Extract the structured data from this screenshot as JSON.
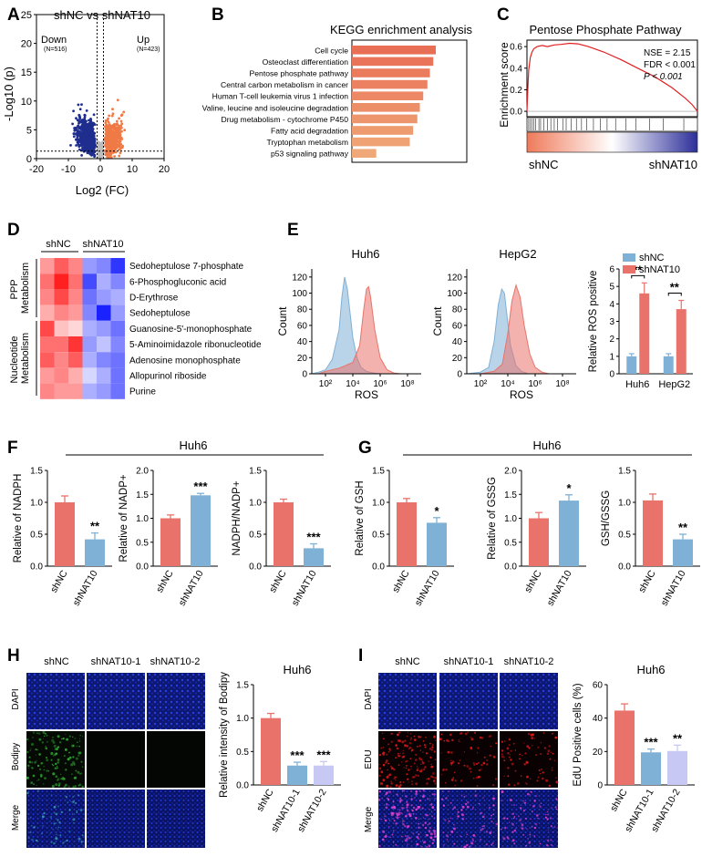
{
  "panel_labels": [
    "A",
    "B",
    "C",
    "D",
    "E",
    "F",
    "G",
    "H",
    "I"
  ],
  "colors": {
    "red": "#e9736b",
    "blue": "#7fb0d6",
    "lav": "#c8c8f4",
    "up": "#ef7a46",
    "down": "#1f2e8e",
    "grey": "#bdbdbd",
    "hm_red": "#e8201e",
    "hm_blue": "#1a21d6"
  },
  "chart_data": [
    {
      "panel": "A",
      "type": "scatter",
      "title": "shNC vs shNAT10",
      "xlabel": "Log2 (FC)",
      "ylabel": "-Log10 (p)",
      "xlim": [
        -20,
        20
      ],
      "ylim": [
        0,
        25
      ],
      "xticks": [
        "-20",
        "-10",
        "0",
        "10",
        "20"
      ],
      "yticks": [
        "0",
        "5",
        "10",
        "15",
        "20",
        "25"
      ],
      "series": [
        {
          "name": "Down",
          "count_label": "(N=516)",
          "color": "#1f2e8e"
        },
        {
          "name": "Up",
          "count_label": "(N=423)",
          "color": "#ef7a46"
        }
      ],
      "thresholds": {
        "fc_log2": [
          -1,
          1
        ],
        "neg_log10_p": 1.3
      }
    },
    {
      "panel": "B",
      "type": "bar",
      "title": "KEGG enrichment analysis",
      "categories": [
        "Cell cycle",
        "Osteoclast differentiation",
        "Pentose phosphate pathway",
        "Central carbon metabolism in cancer",
        "Human T-cell leukemia virus 1 infection",
        "Valine, leucine and isoleucine degradation",
        "Drug metabolism - cytochrome P450",
        "Fatty acid degradation",
        "Tryptophan metabolism",
        "p53 signaling pathway"
      ],
      "values": [
        10,
        9.7,
        9.3,
        9.0,
        8.5,
        8.1,
        7.8,
        7.3,
        6.9,
        2.9
      ]
    },
    {
      "panel": "C",
      "type": "line",
      "title": "Pentose Phosphate Pathway",
      "ylabel": "Enrichment score",
      "yticks": [
        "0.0",
        "0.2",
        "0.4",
        "0.6"
      ],
      "ylim": [
        -0.05,
        0.66
      ],
      "annotations": [
        "NSE = 2.15",
        "FDR < 0.001",
        "P < 0.001"
      ],
      "gradient_labels": [
        "shNC",
        "shNAT10"
      ],
      "running_es": [
        [
          0,
          0
        ],
        [
          0.5,
          0.2
        ],
        [
          1,
          0.38
        ],
        [
          2,
          0.5
        ],
        [
          3,
          0.55
        ],
        [
          4,
          0.58
        ],
        [
          6,
          0.6
        ],
        [
          9,
          0.61
        ],
        [
          12,
          0.6
        ],
        [
          16,
          0.615
        ],
        [
          20,
          0.62
        ],
        [
          25,
          0.63
        ],
        [
          30,
          0.625
        ],
        [
          36,
          0.6
        ],
        [
          45,
          0.55
        ],
        [
          55,
          0.48
        ],
        [
          65,
          0.4
        ],
        [
          75,
          0.32
        ],
        [
          85,
          0.22
        ],
        [
          93,
          0.12
        ],
        [
          97,
          0.06
        ],
        [
          100,
          0.0
        ]
      ],
      "hit_positions": [
        1,
        2,
        3,
        4,
        5,
        7,
        8,
        10,
        12,
        14,
        16,
        18,
        21,
        23,
        26,
        29,
        32,
        35,
        39,
        43,
        47,
        52,
        58,
        64,
        72,
        80,
        92
      ]
    },
    {
      "panel": "D",
      "type": "heatmap",
      "groups": [
        "shNC",
        "shNAT10"
      ],
      "row_groups": [
        {
          "name": "PPP Metabolism",
          "rows": 4
        },
        {
          "name": "Nucleotide Metabolism",
          "rows": 5
        }
      ],
      "rows": [
        "Sedoheptulose 7-phosphate",
        "6-Phosphogluconic acid",
        "D-Erythrose",
        "Sedoheptulose",
        "Guanosine-5'-monophosphate",
        "5-Aminoimidazole ribonucleotide",
        "Adenosine monophosphate",
        "Allopurinol riboside",
        "Purine"
      ],
      "values": [
        [
          0.4,
          0.7,
          0.5,
          -0.4,
          -0.5,
          -0.9
        ],
        [
          0.6,
          1.0,
          0.6,
          -0.8,
          -0.3,
          -0.5
        ],
        [
          0.5,
          0.8,
          0.5,
          -0.6,
          -0.4,
          -0.3
        ],
        [
          0.3,
          0.5,
          0.4,
          -0.5,
          -1.0,
          -0.4
        ],
        [
          0.8,
          0.2,
          0.1,
          -0.3,
          -0.4,
          -0.6
        ],
        [
          0.6,
          0.6,
          0.9,
          -0.4,
          -0.2,
          -0.5
        ],
        [
          0.7,
          0.5,
          0.7,
          -0.3,
          -0.5,
          -0.6
        ],
        [
          0.4,
          0.5,
          0.3,
          -0.1,
          -0.3,
          -0.6
        ],
        [
          0.5,
          0.4,
          0.4,
          -0.3,
          -0.4,
          -0.6
        ]
      ]
    },
    {
      "panel": "E1",
      "type": "area",
      "title": "Huh6",
      "xlabel": "ROS",
      "ylabel": "Count",
      "yticks": [
        "0",
        "20",
        "40",
        "60",
        "80",
        "100",
        "120"
      ],
      "ylim": [
        0,
        130
      ],
      "xticks": [
        "10²",
        "10⁴",
        "10⁶",
        "10⁸"
      ],
      "xlim_log10": [
        1,
        9
      ],
      "series": [
        {
          "name": "shNC",
          "color": "#7fb0d6",
          "points": [
            [
              1,
              0
            ],
            [
              1.5,
              2
            ],
            [
              2,
              5
            ],
            [
              2.5,
              18
            ],
            [
              3,
              55
            ],
            [
              3.2,
              95
            ],
            [
              3.4,
              120
            ],
            [
              3.6,
              105
            ],
            [
              3.8,
              75
            ],
            [
              4,
              45
            ],
            [
              4.3,
              20
            ],
            [
              4.6,
              8
            ],
            [
              5,
              3
            ],
            [
              5.5,
              1
            ],
            [
              6,
              0
            ]
          ]
        },
        {
          "name": "shNAT10",
          "color": "#e9736b",
          "points": [
            [
              1.5,
              0
            ],
            [
              2,
              3
            ],
            [
              3,
              7
            ],
            [
              4,
              14
            ],
            [
              4.5,
              35
            ],
            [
              4.8,
              80
            ],
            [
              5,
              105
            ],
            [
              5.15,
              108
            ],
            [
              5.3,
              95
            ],
            [
              5.6,
              55
            ],
            [
              6,
              20
            ],
            [
              6.5,
              5
            ],
            [
              7,
              1
            ],
            [
              7.5,
              0
            ]
          ]
        }
      ]
    },
    {
      "panel": "E2",
      "type": "area",
      "title": "HepG2",
      "xlabel": "ROS",
      "ylabel": "Count",
      "yticks": [
        "0",
        "20",
        "40",
        "60",
        "80",
        "100",
        "120"
      ],
      "ylim": [
        0,
        130
      ],
      "xticks": [
        "10²",
        "10⁴",
        "10⁶",
        "10⁸"
      ],
      "xlim_log10": [
        1,
        9
      ],
      "series": [
        {
          "name": "shNC",
          "color": "#7fb0d6",
          "points": [
            [
              1,
              0
            ],
            [
              2,
              2
            ],
            [
              2.6,
              8
            ],
            [
              3,
              40
            ],
            [
              3.3,
              85
            ],
            [
              3.55,
              105
            ],
            [
              3.75,
              100
            ],
            [
              3.95,
              70
            ],
            [
              4.2,
              35
            ],
            [
              4.6,
              10
            ],
            [
              5,
              3
            ],
            [
              5.5,
              0
            ]
          ]
        },
        {
          "name": "shNAT10",
          "color": "#e9736b",
          "points": [
            [
              2,
              0
            ],
            [
              3,
              3
            ],
            [
              3.6,
              12
            ],
            [
              4,
              50
            ],
            [
              4.3,
              90
            ],
            [
              4.6,
              110
            ],
            [
              4.9,
              95
            ],
            [
              5.2,
              60
            ],
            [
              5.6,
              25
            ],
            [
              6,
              8
            ],
            [
              6.5,
              2
            ],
            [
              7,
              0
            ]
          ]
        }
      ]
    },
    {
      "panel": "E3",
      "type": "bar",
      "ylabel": "Relative ROS positive",
      "ylim": [
        0,
        6
      ],
      "yticks": [
        "0",
        "1",
        "2",
        "3",
        "4",
        "5",
        "6"
      ],
      "categories": [
        "Huh6",
        "HepG2"
      ],
      "series": [
        {
          "name": "shNC",
          "color": "#7fb0d6",
          "values": [
            1.0,
            1.0
          ],
          "errors": [
            0.15,
            0.15
          ]
        },
        {
          "name": "shNAT10",
          "color": "#e9736b",
          "values": [
            4.6,
            3.7
          ],
          "errors": [
            0.6,
            0.5
          ]
        }
      ],
      "significance": [
        "**",
        "**"
      ]
    },
    {
      "panel": "F1",
      "type": "bar",
      "group_title": "Huh6",
      "ylabel": "Relative of NADPH",
      "ylim": [
        0,
        1.5
      ],
      "yticks": [
        "0.0",
        "0.5",
        "1.0",
        "1.5"
      ],
      "categories": [
        "shNC",
        "shNAT10"
      ],
      "values": [
        1.0,
        0.42
      ],
      "errors": [
        0.1,
        0.1
      ],
      "significance": "**"
    },
    {
      "panel": "F2",
      "type": "bar",
      "ylabel": "Relative of NADP+",
      "ylim": [
        0,
        2.0
      ],
      "yticks": [
        "0.0",
        "0.5",
        "1.0",
        "1.5",
        "2.0"
      ],
      "categories": [
        "shNC",
        "shNAT10"
      ],
      "values": [
        1.0,
        1.48
      ],
      "errors": [
        0.07,
        0.04
      ],
      "significance": "***"
    },
    {
      "panel": "F3",
      "type": "bar",
      "ylabel": "NADPH/NADP+",
      "ylim": [
        0,
        1.5
      ],
      "yticks": [
        "0.0",
        "0.5",
        "1.0",
        "1.5"
      ],
      "categories": [
        "shNC",
        "shNAT10"
      ],
      "values": [
        1.0,
        0.28
      ],
      "errors": [
        0.05,
        0.07
      ],
      "significance": "***"
    },
    {
      "panel": "G1",
      "type": "bar",
      "group_title": "Huh6",
      "ylabel": "Relative of GSH",
      "ylim": [
        0,
        1.5
      ],
      "yticks": [
        "0.0",
        "0.5",
        "1.0",
        "1.5"
      ],
      "categories": [
        "shNC",
        "shNAT10"
      ],
      "values": [
        1.0,
        0.68
      ],
      "errors": [
        0.06,
        0.08
      ],
      "significance": "*"
    },
    {
      "panel": "G2",
      "type": "bar",
      "ylabel": "Relative of GSSG",
      "ylim": [
        0,
        2.0
      ],
      "yticks": [
        "0.0",
        "0.5",
        "1.0",
        "1.5",
        "2.0"
      ],
      "categories": [
        "shNC",
        "shNAT10"
      ],
      "values": [
        1.0,
        1.37
      ],
      "errors": [
        0.12,
        0.12
      ],
      "significance": "*"
    },
    {
      "panel": "G3",
      "type": "bar",
      "ylabel": "GSH/GSSG",
      "ylim": [
        0,
        1.5
      ],
      "yticks": [
        "0.0",
        "0.5",
        "1.0",
        "1.5"
      ],
      "categories": [
        "shNC",
        "shNAT10"
      ],
      "values": [
        1.03,
        0.42
      ],
      "errors": [
        0.1,
        0.08
      ],
      "significance": "**"
    },
    {
      "panel": "H",
      "type": "bar",
      "title": "Huh6",
      "ylabel": "Relative intensity of Bodipy",
      "ylim": [
        0,
        1.5
      ],
      "yticks": [
        "0.0",
        "0.5",
        "1.0",
        "1.5"
      ],
      "categories": [
        "shNC",
        "shNAT10-1",
        "shNAT10-2"
      ],
      "values": [
        1.0,
        0.29,
        0.29
      ],
      "errors": [
        0.07,
        0.05,
        0.06
      ],
      "significance": [
        "",
        "***",
        "***"
      ]
    },
    {
      "panel": "I",
      "type": "bar",
      "title": "Huh6",
      "ylabel": "EdU Positive cells (%)",
      "ylim": [
        0,
        60
      ],
      "yticks": [
        "0",
        "20",
        "40",
        "60"
      ],
      "categories": [
        "shNC",
        "shNAT10-1",
        "shNAT10-2"
      ],
      "values": [
        44.5,
        19.5,
        20.3
      ],
      "errors": [
        4,
        2,
        3.5
      ],
      "significance": [
        "",
        "***",
        "**"
      ]
    }
  ],
  "microscopy": {
    "H": {
      "columns": [
        "shNC",
        "shNAT10-1",
        "shNAT10-2"
      ],
      "rows": [
        "DAPI",
        "Bodipy",
        "Merge"
      ]
    },
    "I": {
      "columns": [
        "shNC",
        "shNAT10-1",
        "shNAT10-2"
      ],
      "rows": [
        "DAPI",
        "EDU",
        "Merge"
      ]
    }
  }
}
